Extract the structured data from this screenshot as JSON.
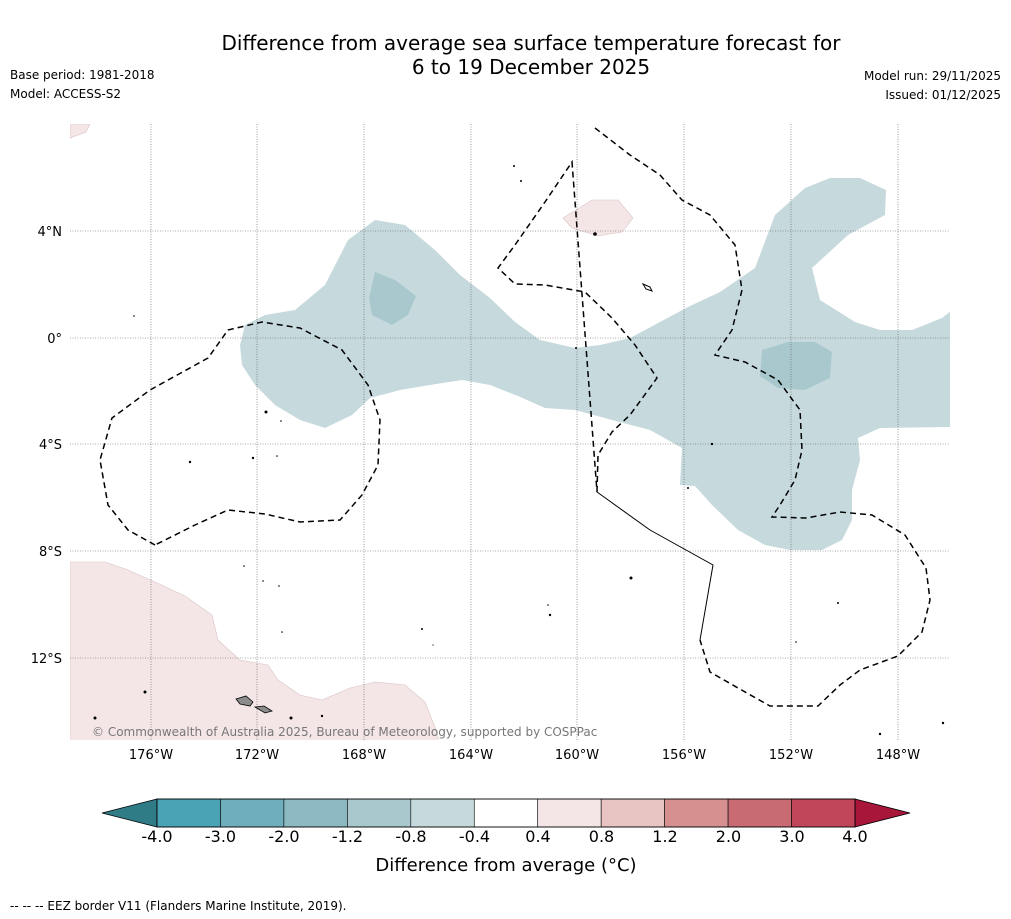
{
  "header": {
    "title_line1": "Difference from average sea surface temperature forecast for",
    "title_line2": "6 to 19 December 2025",
    "base_period": "Base period: 1981-2018",
    "model": "Model: ACCESS-S2",
    "model_run": "Model run: 29/11/2025",
    "issued": "Issued: 01/12/2025"
  },
  "map": {
    "lat_labels": [
      "4°N",
      "0°",
      "4°S",
      "8°S",
      "12°S"
    ],
    "lon_labels": [
      "176°W",
      "172°W",
      "168°W",
      "164°W",
      "160°W",
      "156°W",
      "152°W",
      "148°W"
    ],
    "copyright": "© Commonwealth of Australia 2025, Bureau of Meteorology, supported by COSPPac"
  },
  "colorbar": {
    "ticks": [
      "-4.0",
      "-3.0",
      "-2.0",
      "-1.2",
      "-0.8",
      "-0.4",
      "0.4",
      "0.8",
      "1.2",
      "2.0",
      "3.0",
      "4.0"
    ],
    "colors": [
      "#4aa3b4",
      "#6eaebd",
      "#8db9c2",
      "#a9c8ce",
      "#c6dadd",
      "#ffffff",
      "#f4e6e7",
      "#e8c4c3",
      "#d5908f",
      "#c96b72",
      "#c1465a"
    ],
    "under_color": "#2f7c87",
    "over_color": "#a8163a",
    "title": "Difference from average (°C)"
  },
  "footnote": "--  --  -- EEZ border V11 (Flanders Marine Institute, 2019)."
}
